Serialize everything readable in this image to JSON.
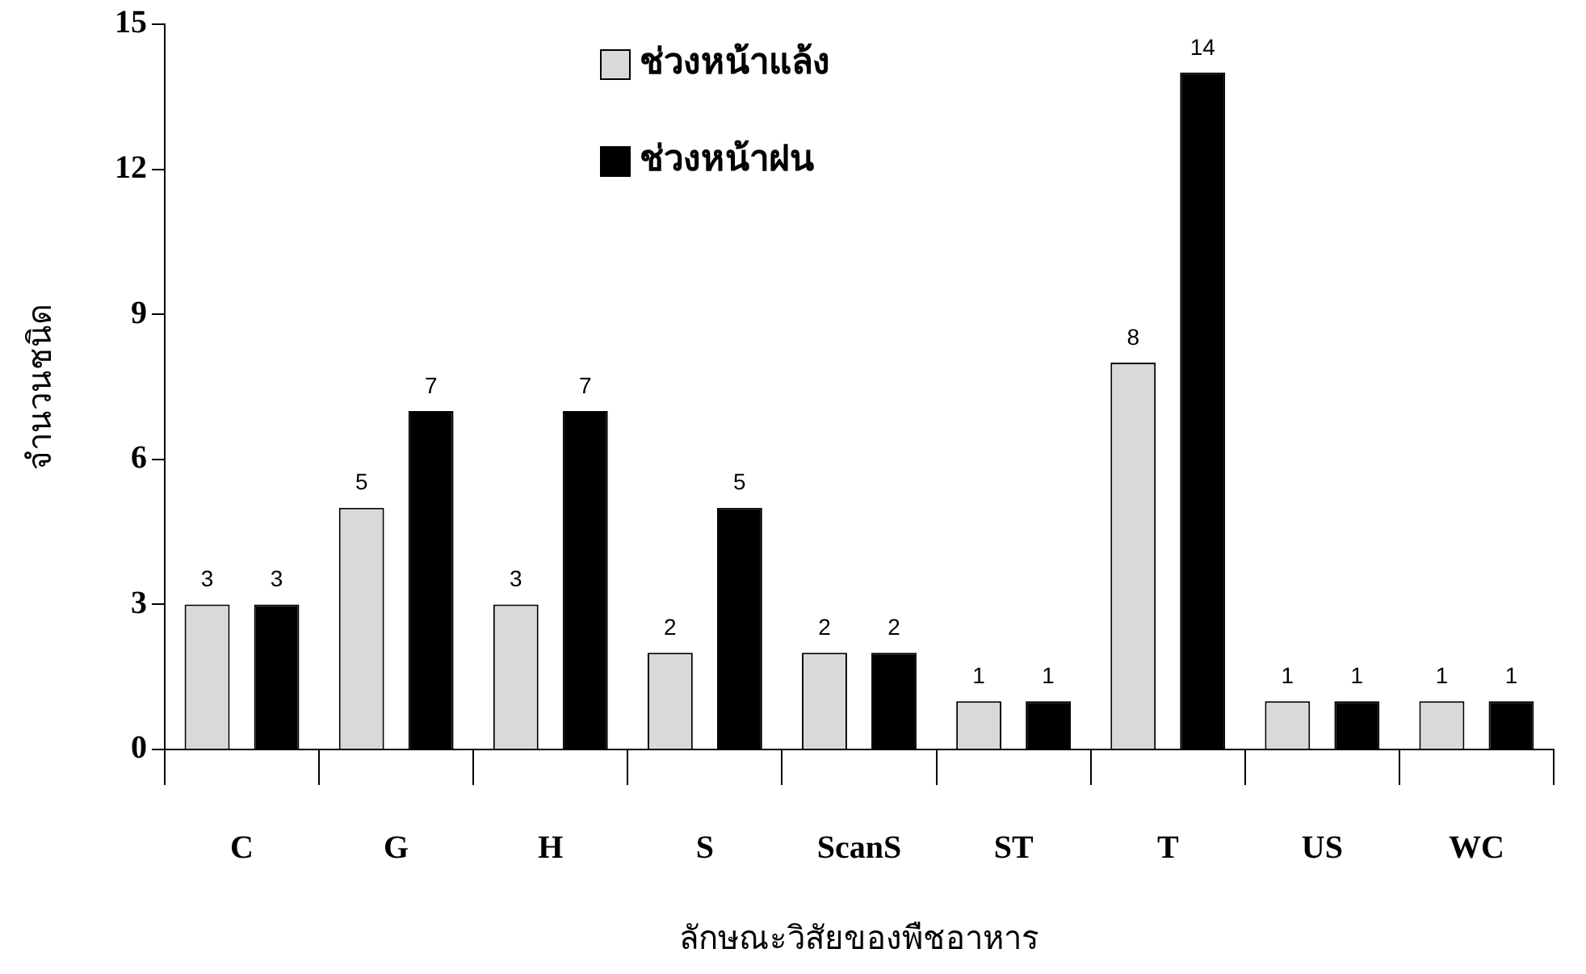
{
  "chart_data": {
    "type": "bar",
    "xlabel": "ลักษณะวิสัยของพืชอาหาร",
    "ylabel": "จำนวนชนิด",
    "categories": [
      "C",
      "G",
      "H",
      "S",
      "ScanS",
      "ST",
      "T",
      "US",
      "WC"
    ],
    "series": [
      {
        "name": "ช่วงหน้าแล้ง",
        "color": "#d9d9d9",
        "values": [
          3,
          5,
          3,
          2,
          2,
          1,
          8,
          1,
          1
        ]
      },
      {
        "name": "ช่วงหน้าฝน",
        "color": "#000000",
        "values": [
          3,
          7,
          7,
          5,
          2,
          1,
          14,
          1,
          1
        ]
      }
    ],
    "ylim": [
      0,
      15
    ],
    "yticks": [
      0,
      3,
      6,
      9,
      12,
      15
    ],
    "grid": false,
    "legend": "top",
    "data_labels": true
  }
}
